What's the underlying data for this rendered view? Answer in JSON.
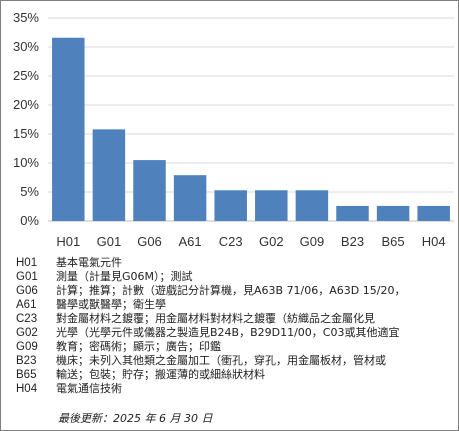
{
  "chart_data": {
    "type": "bar",
    "categories": [
      "H01",
      "G01",
      "G06",
      "A61",
      "C23",
      "G02",
      "G09",
      "B23",
      "B65",
      "H04"
    ],
    "values": [
      31.6,
      15.8,
      10.5,
      7.9,
      5.3,
      5.3,
      5.3,
      2.6,
      2.6,
      2.6
    ],
    "ylim": [
      0,
      35
    ],
    "yticks": [
      "0%",
      "5%",
      "10%",
      "15%",
      "20%",
      "25%",
      "30%",
      "35%"
    ],
    "grid": true,
    "bar_color": "#4f81bd"
  },
  "legend": [
    {
      "code": "H01",
      "desc": "基本電氣元件"
    },
    {
      "code": "G01",
      "desc": "測量（計量見G06M）；測試"
    },
    {
      "code": "G06",
      "desc": "計算；推算；計數（遊戲記分計算機，見A63B 71/06，A63D 15/20，"
    },
    {
      "code": "A61",
      "desc": "醫學或獸醫學；衛生學"
    },
    {
      "code": "C23",
      "desc": "對金屬材料之鍍覆；用金屬材料對材料之鍍覆（紡織品之金屬化見"
    },
    {
      "code": "G02",
      "desc": "光學（光學元件或儀器之製造見B24B，B29D11/00，C03或其他適宜"
    },
    {
      "code": "G09",
      "desc": "教育；密碼術；顯示；廣告；印鑑"
    },
    {
      "code": "B23",
      "desc": "機床；未列入其他類之金屬加工（衝孔，穿孔，用金屬板材，管材或"
    },
    {
      "code": "B65",
      "desc": "輸送；包裝；貯存；搬運薄的或細絲狀材料"
    },
    {
      "code": "H04",
      "desc": "電氣通信技術"
    }
  ],
  "footer": "最後更新：2025 年 6 月 30 日"
}
